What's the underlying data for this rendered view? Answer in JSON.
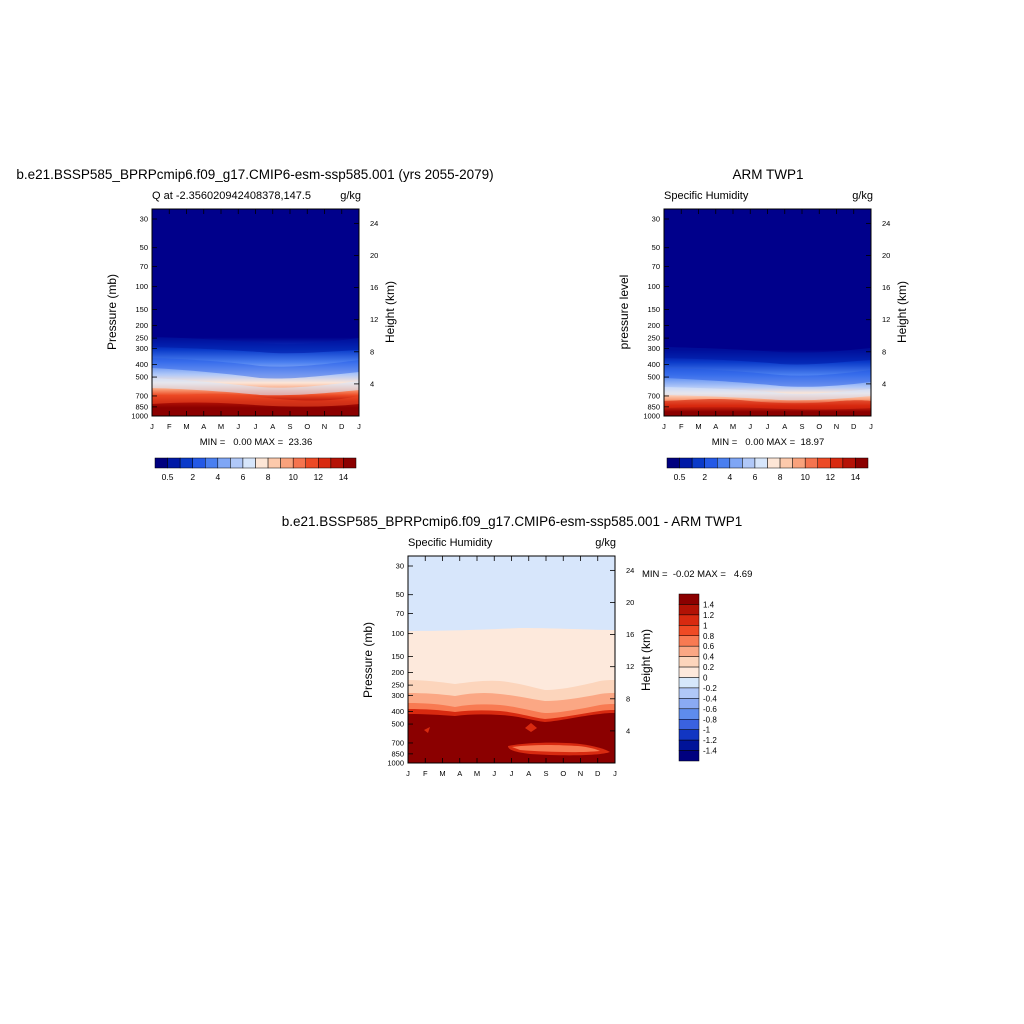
{
  "chart_data": [
    {
      "type": "heatmap",
      "title": "b.e21.BSSP585_BPRPcmip6.f09_g17.CMIP6-esm-ssp585.001 (yrs 2055-2079)",
      "subtitle_left": "Q at -2.356020942408378,147.5",
      "subtitle_right": "g/kg",
      "ylabel": "Pressure (mb)",
      "ylabel_right": "Height (km)",
      "x_ticks": [
        "J",
        "F",
        "M",
        "A",
        "M",
        "J",
        "J",
        "A",
        "S",
        "O",
        "N",
        "D",
        "J"
      ],
      "y_ticks": [
        "30",
        "50",
        "70",
        "100",
        "150",
        "200",
        "250",
        "300",
        "400",
        "500",
        "700",
        "850",
        "1000"
      ],
      "y2_ticks": [
        "24",
        "20",
        "16",
        "12",
        "8",
        "4"
      ],
      "minmax": "MIN =   0.00 MAX =  23.36",
      "min": 0.0,
      "max": 23.36,
      "colorbar_labels": [
        "0.5",
        "2",
        "4",
        "6",
        "8",
        "10",
        "12",
        "14"
      ],
      "colorbar_levels": [
        0.5,
        1,
        2,
        3,
        4,
        5,
        6,
        7,
        8,
        9,
        10,
        11,
        12,
        13,
        14
      ]
    },
    {
      "type": "heatmap",
      "title": "ARM TWP1",
      "subtitle_left": "Specific Humidity",
      "subtitle_right": "g/kg",
      "ylabel": "pressure level",
      "ylabel_right": "Height (km)",
      "x_ticks": [
        "J",
        "F",
        "M",
        "A",
        "M",
        "J",
        "J",
        "A",
        "S",
        "O",
        "N",
        "D",
        "J"
      ],
      "y_ticks": [
        "30",
        "50",
        "70",
        "100",
        "150",
        "200",
        "250",
        "300",
        "400",
        "500",
        "700",
        "850",
        "1000"
      ],
      "y2_ticks": [
        "24",
        "20",
        "16",
        "12",
        "8",
        "4"
      ],
      "minmax": "MIN =   0.00 MAX =  18.97",
      "min": 0.0,
      "max": 18.97,
      "colorbar_labels": [
        "0.5",
        "2",
        "4",
        "6",
        "8",
        "10",
        "12",
        "14"
      ],
      "colorbar_levels": [
        0.5,
        1,
        2,
        3,
        4,
        5,
        6,
        7,
        8,
        9,
        10,
        11,
        12,
        13,
        14
      ]
    },
    {
      "type": "heatmap",
      "title": "b.e21.BSSP585_BPRPcmip6.f09_g17.CMIP6-esm-ssp585.001 - ARM TWP1",
      "subtitle_left": "Specific Humidity",
      "subtitle_right": "g/kg",
      "ylabel": "Pressure (mb)",
      "ylabel_right": "Height (km)",
      "x_ticks": [
        "J",
        "F",
        "M",
        "A",
        "M",
        "J",
        "J",
        "A",
        "S",
        "O",
        "N",
        "D",
        "J"
      ],
      "y_ticks": [
        "30",
        "50",
        "70",
        "100",
        "150",
        "200",
        "250",
        "300",
        "400",
        "500",
        "700",
        "850",
        "1000"
      ],
      "y2_ticks": [
        "24",
        "20",
        "16",
        "12",
        "8",
        "4"
      ],
      "minmax": "MIN =  -0.02 MAX =   4.69",
      "min": -0.02,
      "max": 4.69,
      "colorbar_labels": [
        "1.4",
        "1.2",
        "1",
        "0.8",
        "0.6",
        "0.4",
        "0.2",
        "0",
        "-0.2",
        "-0.4",
        "-0.6",
        "-0.8",
        "-1",
        "-1.2",
        "-1.4"
      ],
      "colorbar_levels": [
        1.4,
        1.2,
        1,
        0.8,
        0.6,
        0.4,
        0.2,
        0,
        -0.2,
        -0.4,
        -0.6,
        -0.8,
        -1,
        -1.2,
        -1.4
      ]
    }
  ],
  "colors": {
    "palette16": [
      "#00007f",
      "#0019a6",
      "#0a3ac9",
      "#2459e6",
      "#4a7ff0",
      "#7fa6f5",
      "#b0c8f8",
      "#d7e6fb",
      "#fde6d6",
      "#fcc9ab",
      "#f9a27c",
      "#f5744f",
      "#ec4a25",
      "#d82a10",
      "#b51206",
      "#8b0000"
    ],
    "diff_colorbar": [
      "#8b0000",
      "#b21205",
      "#d82a10",
      "#ef4a24",
      "#f87a52",
      "#fba784",
      "#fcd5bc",
      "#fde9dc",
      "#d6e8fb",
      "#b0c8f8",
      "#8aaaf3",
      "#5e8ced",
      "#3a62e0",
      "#1236c2",
      "#001399",
      "#00007f"
    ]
  }
}
